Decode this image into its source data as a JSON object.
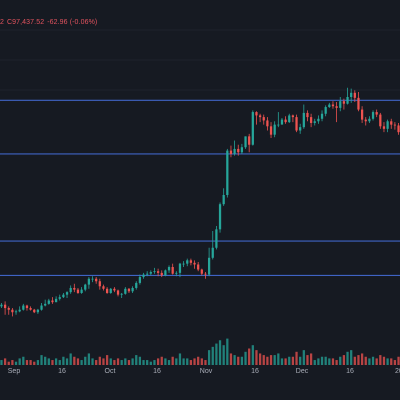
{
  "header": {
    "ohlc_fragment": "2",
    "close_label": "C",
    "close_value": "97,437.52",
    "change": "-62.96 (-0.06%)"
  },
  "colors": {
    "background": "#161a22",
    "up": "#26a69a",
    "down": "#ef5350",
    "line": "#3f63c4",
    "text": "#a9adb8",
    "grid": "#242936"
  },
  "chart_data": {
    "type": "candlestick",
    "x_tick_labels": [
      "Sep",
      "16",
      "Oct",
      "16",
      "Nov",
      "16",
      "Dec",
      "16",
      "20"
    ],
    "horizontal_lines": [
      107,
      148,
      252,
      316
    ],
    "ylim": [
      0,
      400
    ],
    "volume_scale": 45,
    "candles": [
      [
        73,
        70,
        80,
        62,
        3
      ],
      [
        70,
        72,
        74,
        68,
        3
      ],
      [
        72,
        68,
        76,
        60,
        4
      ],
      [
        68,
        66,
        70,
        60,
        2
      ],
      [
        66,
        63,
        68,
        58,
        3
      ],
      [
        63,
        64,
        66,
        60,
        2
      ],
      [
        64,
        66,
        70,
        63,
        4
      ],
      [
        66,
        71,
        73,
        65,
        5
      ],
      [
        71,
        68,
        72,
        65,
        3
      ],
      [
        68,
        66,
        70,
        65,
        3
      ],
      [
        66,
        63,
        67,
        62,
        2
      ],
      [
        63,
        66,
        67,
        61,
        3
      ],
      [
        66,
        71,
        74,
        65,
        6
      ],
      [
        71,
        73,
        78,
        70,
        5
      ],
      [
        73,
        77,
        79,
        72,
        4
      ],
      [
        77,
        75,
        81,
        73,
        3
      ],
      [
        75,
        79,
        82,
        75,
        4
      ],
      [
        79,
        81,
        84,
        77,
        3
      ],
      [
        81,
        84,
        86,
        80,
        5
      ],
      [
        84,
        87,
        88,
        80,
        4
      ],
      [
        87,
        92,
        95,
        85,
        7
      ],
      [
        92,
        90,
        97,
        87,
        5
      ],
      [
        90,
        86,
        92,
        85,
        4
      ],
      [
        86,
        90,
        93,
        85,
        3
      ],
      [
        90,
        96,
        97,
        88,
        5
      ],
      [
        96,
        103,
        105,
        91,
        7
      ],
      [
        103,
        103,
        106,
        99,
        4
      ],
      [
        103,
        100,
        105,
        97,
        3
      ],
      [
        100,
        94,
        103,
        90,
        5
      ],
      [
        94,
        91,
        96,
        89,
        4
      ],
      [
        91,
        86,
        93,
        85,
        6
      ],
      [
        86,
        91,
        92,
        85,
        4
      ],
      [
        91,
        89,
        93,
        87,
        3
      ],
      [
        89,
        84,
        90,
        82,
        4
      ],
      [
        84,
        85,
        86,
        80,
        3
      ],
      [
        85,
        91,
        93,
        84,
        4
      ],
      [
        91,
        88,
        92,
        86,
        3
      ],
      [
        88,
        92,
        94,
        86,
        4
      ],
      [
        92,
        98,
        100,
        90,
        6
      ],
      [
        98,
        105,
        108,
        96,
        5
      ],
      [
        105,
        108,
        110,
        103,
        3
      ],
      [
        108,
        109,
        112,
        106,
        3
      ],
      [
        109,
        111,
        113,
        107,
        2
      ],
      [
        111,
        112,
        116,
        109,
        3
      ],
      [
        112,
        110,
        115,
        106,
        4
      ],
      [
        110,
        107,
        113,
        105,
        5
      ],
      [
        107,
        113,
        114,
        106,
        4
      ],
      [
        113,
        117,
        119,
        110,
        3
      ],
      [
        117,
        109,
        121,
        108,
        5
      ],
      [
        109,
        110,
        112,
        106,
        4
      ],
      [
        110,
        121,
        122,
        105,
        7
      ],
      [
        121,
        121,
        124,
        117,
        4
      ],
      [
        121,
        125,
        127,
        118,
        4
      ],
      [
        125,
        122,
        127,
        119,
        3
      ],
      [
        122,
        120,
        125,
        115,
        4
      ],
      [
        120,
        114,
        123,
        112,
        5
      ],
      [
        114,
        109,
        115,
        107,
        4
      ],
      [
        109,
        108,
        111,
        103,
        3
      ],
      [
        108,
        128,
        140,
        106,
        9
      ],
      [
        128,
        140,
        160,
        126,
        11
      ],
      [
        140,
        162,
        166,
        138,
        13
      ],
      [
        162,
        192,
        194,
        158,
        15
      ],
      [
        192,
        203,
        211,
        190,
        12
      ],
      [
        203,
        256,
        258,
        200,
        16
      ],
      [
        256,
        252,
        262,
        248,
        7
      ],
      [
        252,
        258,
        268,
        250,
        6
      ],
      [
        258,
        254,
        263,
        250,
        5
      ],
      [
        254,
        260,
        264,
        252,
        5
      ],
      [
        260,
        273,
        273,
        258,
        8
      ],
      [
        273,
        263,
        276,
        254,
        10
      ],
      [
        263,
        302,
        304,
        262,
        12
      ],
      [
        302,
        298,
        303,
        287,
        9
      ],
      [
        298,
        296,
        300,
        290,
        7
      ],
      [
        296,
        292,
        299,
        287,
        6
      ],
      [
        292,
        285,
        296,
        280,
        5
      ],
      [
        285,
        275,
        290,
        271,
        6
      ],
      [
        275,
        287,
        291,
        272,
        6
      ],
      [
        287,
        287,
        302,
        284,
        7
      ],
      [
        287,
        293,
        295,
        290,
        4
      ],
      [
        293,
        290,
        297,
        288,
        4
      ],
      [
        290,
        298,
        300,
        289,
        5
      ],
      [
        298,
        296,
        299,
        290,
        5
      ],
      [
        296,
        280,
        299,
        278,
        8
      ],
      [
        280,
        284,
        288,
        276,
        5
      ],
      [
        284,
        301,
        311,
        282,
        9
      ],
      [
        301,
        296,
        304,
        291,
        6
      ],
      [
        296,
        289,
        300,
        284,
        7
      ],
      [
        289,
        291,
        294,
        286,
        3
      ],
      [
        291,
        294,
        298,
        288,
        4
      ],
      [
        294,
        300,
        304,
        291,
        5
      ],
      [
        300,
        308,
        310,
        297,
        5
      ],
      [
        308,
        311,
        313,
        307,
        4
      ],
      [
        311,
        309,
        315,
        306,
        4
      ],
      [
        309,
        307,
        314,
        290,
        3
      ],
      [
        307,
        315,
        320,
        303,
        5
      ],
      [
        315,
        312,
        318,
        305,
        6
      ],
      [
        312,
        320,
        331,
        311,
        8
      ],
      [
        320,
        325,
        330,
        313,
        9
      ],
      [
        325,
        319,
        328,
        314,
        5
      ],
      [
        319,
        305,
        326,
        303,
        6
      ],
      [
        305,
        293,
        309,
        289,
        7
      ],
      [
        293,
        291,
        296,
        286,
        5
      ],
      [
        291,
        294,
        297,
        289,
        4
      ],
      [
        294,
        302,
        304,
        292,
        5
      ],
      [
        302,
        299,
        305,
        296,
        4
      ],
      [
        299,
        285,
        301,
        282,
        6
      ],
      [
        285,
        282,
        290,
        278,
        5
      ],
      [
        282,
        291,
        293,
        278,
        4
      ],
      [
        291,
        287,
        294,
        282,
        4
      ],
      [
        287,
        286,
        290,
        281,
        3
      ],
      [
        286,
        278,
        289,
        275,
        5
      ],
      [
        278,
        283,
        287,
        274,
        4
      ]
    ]
  }
}
